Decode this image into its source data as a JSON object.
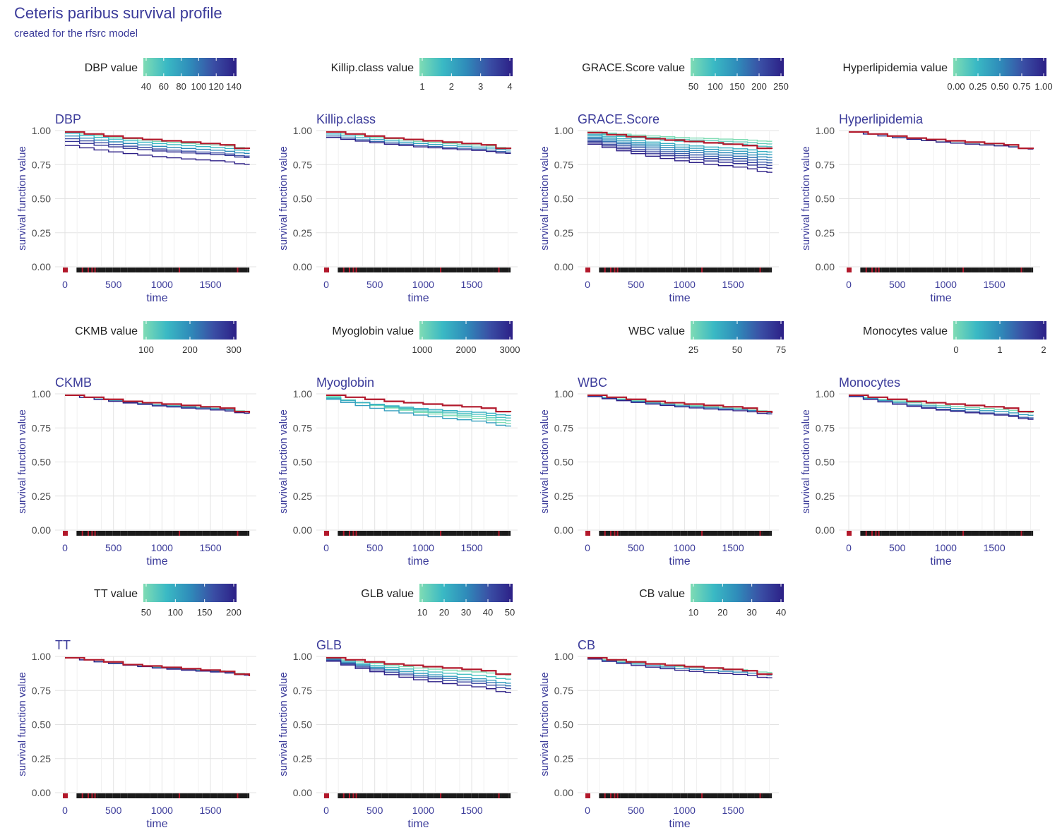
{
  "title": "Ceteris paribus survival profile",
  "subtitle": "created for the rfsrc model",
  "colors": {
    "observed": "#b2182b",
    "palette": [
      "#7fdcb4",
      "#3ab9c4",
      "#2f8cba",
      "#3a4fa5",
      "#2c1f86"
    ],
    "grid": "#e3e3e3",
    "axis_text": "#4d4d4d",
    "label": "#3b3b9a"
  },
  "chart_data": [
    {
      "type": "line",
      "variable": "DBP",
      "legend_label": "DBP value",
      "legend_ticks": [
        "40",
        "60",
        "80",
        "100",
        "120",
        "140"
      ],
      "xlabel": "time",
      "ylabel": "survival function value",
      "xlim": [
        0,
        1900
      ],
      "ylim": [
        0,
        1
      ],
      "x_ticks": [
        "0",
        "500",
        "1000",
        "1500"
      ],
      "y_ticks": [
        "0.00",
        "0.25",
        "0.50",
        "0.75",
        "1.00"
      ],
      "observed": {
        "x": [
          0,
          200,
          400,
          600,
          800,
          1000,
          1200,
          1400,
          1600,
          1750,
          1900
        ],
        "y": [
          0.99,
          0.975,
          0.96,
          0.945,
          0.935,
          0.925,
          0.915,
          0.905,
          0.895,
          0.87,
          0.865
        ]
      },
      "series": [
        {
          "level": 0,
          "start": 0.99,
          "end": 0.87
        },
        {
          "level": 0.25,
          "start": 0.98,
          "end": 0.85
        },
        {
          "level": 0.5,
          "start": 0.96,
          "end": 0.83
        },
        {
          "level": 0.75,
          "start": 0.94,
          "end": 0.81
        },
        {
          "level": 0.9,
          "start": 0.92,
          "end": 0.8
        },
        {
          "level": 1.0,
          "start": 0.89,
          "end": 0.75
        }
      ]
    },
    {
      "type": "line",
      "variable": "Killip.class",
      "legend_label": "Killip.class value",
      "legend_ticks": [
        "1",
        "2",
        "3",
        "4"
      ],
      "xlabel": "time",
      "ylabel": "survival function value",
      "xlim": [
        0,
        1900
      ],
      "ylim": [
        0,
        1
      ],
      "x_ticks": [
        "0",
        "500",
        "1000",
        "1500"
      ],
      "y_ticks": [
        "0.00",
        "0.25",
        "0.50",
        "0.75",
        "1.00"
      ],
      "observed": {
        "x": [
          0,
          200,
          400,
          600,
          800,
          1000,
          1200,
          1400,
          1600,
          1750,
          1900
        ],
        "y": [
          0.99,
          0.975,
          0.96,
          0.945,
          0.935,
          0.925,
          0.915,
          0.905,
          0.895,
          0.87,
          0.865
        ]
      },
      "series": [
        {
          "level": 0,
          "start": 0.99,
          "end": 0.87
        },
        {
          "level": 0.33,
          "start": 0.975,
          "end": 0.855
        },
        {
          "level": 0.66,
          "start": 0.96,
          "end": 0.84
        },
        {
          "level": 1.0,
          "start": 0.95,
          "end": 0.83
        }
      ]
    },
    {
      "type": "line",
      "variable": "GRACE.Score",
      "legend_label": "GRACE.Score value",
      "legend_ticks": [
        "50",
        "100",
        "150",
        "200",
        "250"
      ],
      "xlabel": "time",
      "ylabel": "survival function value",
      "xlim": [
        0,
        1900
      ],
      "ylim": [
        0,
        1
      ],
      "x_ticks": [
        "0",
        "500",
        "1000",
        "1500"
      ],
      "y_ticks": [
        "0.00",
        "0.25",
        "0.50",
        "0.75",
        "1.00"
      ],
      "observed": {
        "x": [
          0,
          200,
          400,
          600,
          800,
          1000,
          1200,
          1400,
          1600,
          1750,
          1900
        ],
        "y": [
          0.985,
          0.97,
          0.955,
          0.94,
          0.93,
          0.92,
          0.91,
          0.9,
          0.89,
          0.87,
          0.865
        ]
      },
      "series": [
        {
          "level": 0,
          "start": 0.99,
          "end": 0.92
        },
        {
          "level": 0.1,
          "start": 0.985,
          "end": 0.9
        },
        {
          "level": 0.2,
          "start": 0.98,
          "end": 0.88
        },
        {
          "level": 0.3,
          "start": 0.97,
          "end": 0.84
        },
        {
          "level": 0.4,
          "start": 0.96,
          "end": 0.82
        },
        {
          "level": 0.5,
          "start": 0.95,
          "end": 0.8
        },
        {
          "level": 0.6,
          "start": 0.94,
          "end": 0.78
        },
        {
          "level": 0.7,
          "start": 0.93,
          "end": 0.76
        },
        {
          "level": 0.8,
          "start": 0.92,
          "end": 0.74
        },
        {
          "level": 0.9,
          "start": 0.91,
          "end": 0.72
        },
        {
          "level": 1.0,
          "start": 0.9,
          "end": 0.69
        }
      ]
    },
    {
      "type": "line",
      "variable": "Hyperlipidemia",
      "legend_label": "Hyperlipidemia value",
      "legend_ticks": [
        "0.00",
        "0.25",
        "0.50",
        "0.75",
        "1.00"
      ],
      "xlabel": "time",
      "ylabel": "survival function value",
      "xlim": [
        0,
        1900
      ],
      "ylim": [
        0,
        1
      ],
      "x_ticks": [
        "0",
        "500",
        "1000",
        "1500"
      ],
      "y_ticks": [
        "0.00",
        "0.25",
        "0.50",
        "0.75",
        "1.00"
      ],
      "observed": {
        "x": [
          0,
          200,
          400,
          600,
          800,
          1000,
          1200,
          1400,
          1600,
          1750,
          1900
        ],
        "y": [
          0.99,
          0.975,
          0.96,
          0.945,
          0.935,
          0.925,
          0.915,
          0.905,
          0.895,
          0.87,
          0.865
        ]
      },
      "series": [
        {
          "level": 0,
          "start": 0.99,
          "end": 0.865
        },
        {
          "level": 1.0,
          "start": 0.99,
          "end": 0.862
        }
      ]
    },
    {
      "type": "line",
      "variable": "CKMB",
      "legend_label": "CKMB value",
      "legend_ticks": [
        "100",
        "200",
        "300"
      ],
      "xlabel": "time",
      "ylabel": "survival function value",
      "xlim": [
        0,
        1900
      ],
      "ylim": [
        0,
        1
      ],
      "x_ticks": [
        "0",
        "500",
        "1000",
        "1500"
      ],
      "y_ticks": [
        "0.00",
        "0.25",
        "0.50",
        "0.75",
        "1.00"
      ],
      "observed": {
        "x": [
          0,
          200,
          400,
          600,
          800,
          1000,
          1200,
          1400,
          1600,
          1750,
          1900
        ],
        "y": [
          0.99,
          0.975,
          0.96,
          0.945,
          0.935,
          0.925,
          0.915,
          0.905,
          0.895,
          0.87,
          0.86
        ]
      },
      "series": [
        {
          "level": 0,
          "start": 0.99,
          "end": 0.87
        },
        {
          "level": 0.5,
          "start": 0.99,
          "end": 0.865
        },
        {
          "level": 1.0,
          "start": 0.99,
          "end": 0.855
        }
      ]
    },
    {
      "type": "line",
      "variable": "Myoglobin",
      "legend_label": "Myoglobin value",
      "legend_ticks": [
        "1000",
        "2000",
        "3000"
      ],
      "xlabel": "time",
      "ylabel": "survival function value",
      "xlim": [
        0,
        1900
      ],
      "ylim": [
        0,
        1
      ],
      "x_ticks": [
        "0",
        "500",
        "1000",
        "1500"
      ],
      "y_ticks": [
        "0.00",
        "0.25",
        "0.50",
        "0.75",
        "1.00"
      ],
      "observed": {
        "x": [
          0,
          200,
          400,
          600,
          800,
          1000,
          1200,
          1400,
          1600,
          1750,
          1900
        ],
        "y": [
          0.99,
          0.975,
          0.96,
          0.945,
          0.935,
          0.925,
          0.915,
          0.905,
          0.895,
          0.87,
          0.865
        ]
      },
      "series": [
        {
          "level": 0,
          "start": 0.98,
          "end": 0.78
        },
        {
          "level": 0.1,
          "start": 0.975,
          "end": 0.8
        },
        {
          "level": 0.2,
          "start": 0.97,
          "end": 0.82
        },
        {
          "level": 0.3,
          "start": 0.965,
          "end": 0.84
        },
        {
          "level": 0.4,
          "start": 0.96,
          "end": 0.76
        }
      ]
    },
    {
      "type": "line",
      "variable": "WBC",
      "legend_label": "WBC value",
      "legend_ticks": [
        "25",
        "50",
        "75"
      ],
      "xlabel": "time",
      "ylabel": "survival function value",
      "xlim": [
        0,
        1900
      ],
      "ylim": [
        0,
        1
      ],
      "x_ticks": [
        "0",
        "500",
        "1000",
        "1500"
      ],
      "y_ticks": [
        "0.00",
        "0.25",
        "0.50",
        "0.75",
        "1.00"
      ],
      "observed": {
        "x": [
          0,
          200,
          400,
          600,
          800,
          1000,
          1200,
          1400,
          1600,
          1750,
          1900
        ],
        "y": [
          0.99,
          0.975,
          0.96,
          0.945,
          0.935,
          0.925,
          0.915,
          0.905,
          0.895,
          0.87,
          0.86
        ]
      },
      "series": [
        {
          "level": 0,
          "start": 0.99,
          "end": 0.87
        },
        {
          "level": 0.5,
          "start": 0.985,
          "end": 0.86
        },
        {
          "level": 1.0,
          "start": 0.98,
          "end": 0.85
        }
      ]
    },
    {
      "type": "line",
      "variable": "Monocytes",
      "legend_label": "Monocytes value",
      "legend_ticks": [
        "0",
        "1",
        "2"
      ],
      "xlabel": "time",
      "ylabel": "survival function value",
      "xlim": [
        0,
        1900
      ],
      "ylim": [
        0,
        1
      ],
      "x_ticks": [
        "0",
        "500",
        "1000",
        "1500"
      ],
      "y_ticks": [
        "0.00",
        "0.25",
        "0.50",
        "0.75",
        "1.00"
      ],
      "observed": {
        "x": [
          0,
          200,
          400,
          600,
          800,
          1000,
          1200,
          1400,
          1600,
          1750,
          1900
        ],
        "y": [
          0.99,
          0.975,
          0.96,
          0.945,
          0.935,
          0.925,
          0.915,
          0.905,
          0.895,
          0.87,
          0.865
        ]
      },
      "series": [
        {
          "level": 0,
          "start": 0.99,
          "end": 0.86
        },
        {
          "level": 0.4,
          "start": 0.985,
          "end": 0.84
        },
        {
          "level": 0.7,
          "start": 0.98,
          "end": 0.82
        },
        {
          "level": 1.0,
          "start": 0.98,
          "end": 0.81
        }
      ]
    },
    {
      "type": "line",
      "variable": "TT",
      "legend_label": "TT value",
      "legend_ticks": [
        "50",
        "100",
        "150",
        "200"
      ],
      "xlabel": "time",
      "ylabel": "survival function value",
      "xlim": [
        0,
        1900
      ],
      "ylim": [
        0,
        1
      ],
      "x_ticks": [
        "0",
        "500",
        "1000",
        "1500"
      ],
      "y_ticks": [
        "0.00",
        "0.25",
        "0.50",
        "0.75",
        "1.00"
      ],
      "observed": {
        "x": [
          0,
          200,
          400,
          600,
          800,
          1000,
          1200,
          1400,
          1600,
          1750,
          1900
        ],
        "y": [
          0.99,
          0.975,
          0.96,
          0.94,
          0.93,
          0.92,
          0.91,
          0.9,
          0.89,
          0.87,
          0.855
        ]
      },
      "series": [
        {
          "level": 0,
          "start": 0.99,
          "end": 0.87
        },
        {
          "level": 0.5,
          "start": 0.99,
          "end": 0.865
        },
        {
          "level": 1.0,
          "start": 0.99,
          "end": 0.86
        }
      ]
    },
    {
      "type": "line",
      "variable": "GLB",
      "legend_label": "GLB value",
      "legend_ticks": [
        "10",
        "20",
        "30",
        "40",
        "50"
      ],
      "xlabel": "time",
      "ylabel": "survival function value",
      "xlim": [
        0,
        1900
      ],
      "ylim": [
        0,
        1
      ],
      "x_ticks": [
        "0",
        "500",
        "1000",
        "1500"
      ],
      "y_ticks": [
        "0.00",
        "0.25",
        "0.50",
        "0.75",
        "1.00"
      ],
      "observed": {
        "x": [
          0,
          200,
          400,
          600,
          800,
          1000,
          1200,
          1400,
          1600,
          1750,
          1900
        ],
        "y": [
          0.99,
          0.975,
          0.96,
          0.945,
          0.935,
          0.925,
          0.915,
          0.905,
          0.895,
          0.87,
          0.865
        ]
      },
      "series": [
        {
          "level": 0,
          "start": 0.99,
          "end": 0.86
        },
        {
          "level": 0.2,
          "start": 0.985,
          "end": 0.83
        },
        {
          "level": 0.4,
          "start": 0.98,
          "end": 0.8
        },
        {
          "level": 0.6,
          "start": 0.975,
          "end": 0.78
        },
        {
          "level": 0.8,
          "start": 0.97,
          "end": 0.76
        },
        {
          "level": 1.0,
          "start": 0.965,
          "end": 0.73
        }
      ]
    },
    {
      "type": "line",
      "variable": "CB",
      "legend_label": "CB value",
      "legend_ticks": [
        "10",
        "20",
        "30",
        "40"
      ],
      "xlabel": "time",
      "ylabel": "survival function value",
      "xlim": [
        0,
        1900
      ],
      "ylim": [
        0,
        1
      ],
      "x_ticks": [
        "0",
        "500",
        "1000",
        "1500"
      ],
      "y_ticks": [
        "0.00",
        "0.25",
        "0.50",
        "0.75",
        "1.00"
      ],
      "observed": {
        "x": [
          0,
          200,
          400,
          600,
          800,
          1000,
          1200,
          1400,
          1600,
          1750,
          1900
        ],
        "y": [
          0.99,
          0.975,
          0.96,
          0.945,
          0.935,
          0.925,
          0.915,
          0.905,
          0.895,
          0.87,
          0.865
        ]
      },
      "series": [
        {
          "level": 0,
          "start": 0.99,
          "end": 0.88
        },
        {
          "level": 0.5,
          "start": 0.985,
          "end": 0.86
        },
        {
          "level": 1.0,
          "start": 0.98,
          "end": 0.84
        }
      ]
    }
  ]
}
